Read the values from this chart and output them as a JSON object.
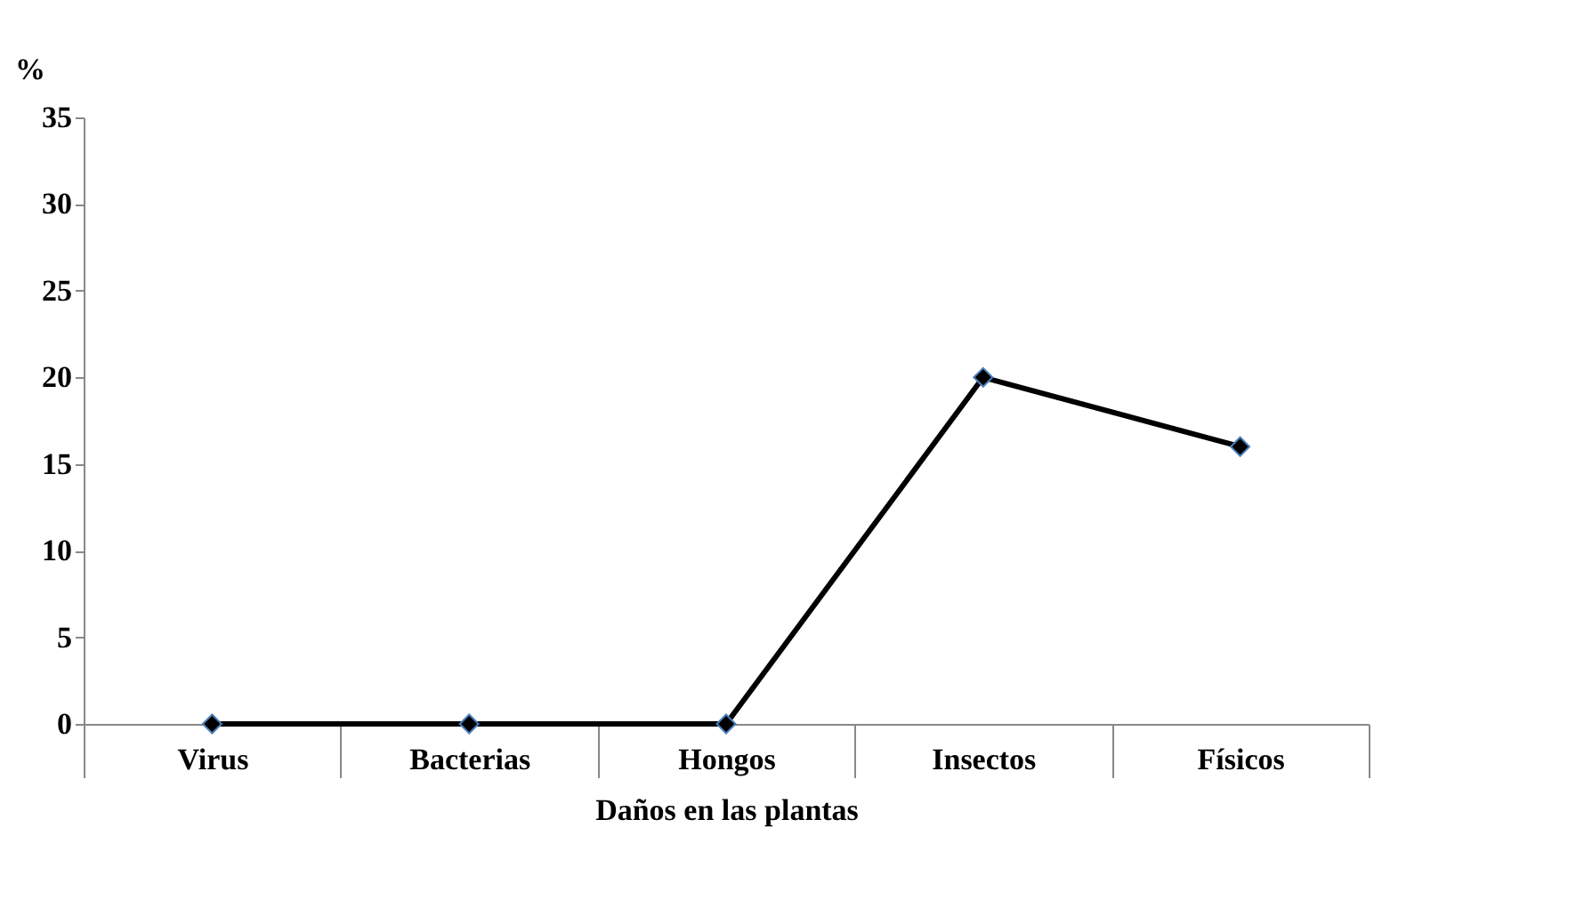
{
  "chart_data": {
    "type": "line",
    "xlabel": "Daños en las plantas",
    "ylabel": "%",
    "categories": [
      "Virus",
      "Bacterias",
      "Hongos",
      "Insectos",
      "Físicos"
    ],
    "series": [
      {
        "color": "#000000",
        "values": [
          0,
          0,
          0,
          20,
          16
        ]
      }
    ],
    "ylim": [
      0,
      35
    ],
    "yticks": [
      0,
      5,
      10,
      15,
      20,
      25,
      30,
      35
    ],
    "grid": false,
    "legend": false,
    "marker": "diamond",
    "line_style": "solid"
  }
}
